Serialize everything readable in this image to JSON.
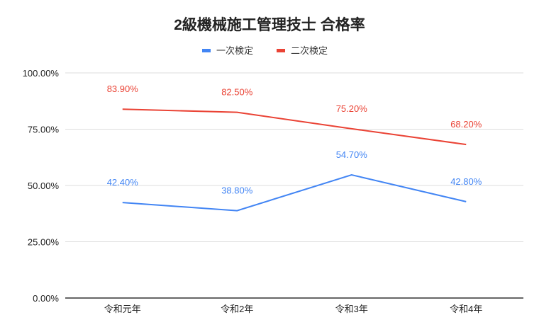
{
  "chart_data": {
    "type": "line",
    "title": "2級機械施工管理技士 合格率",
    "xlabel": "",
    "ylabel": "",
    "categories": [
      "令和元年",
      "令和2年",
      "令和3年",
      "令和4年"
    ],
    "series": [
      {
        "name": "一次検定",
        "color": "#4285f4",
        "values": [
          42.4,
          38.8,
          54.7,
          42.8
        ],
        "labels": [
          "42.40%",
          "38.80%",
          "54.70%",
          "42.80%"
        ]
      },
      {
        "name": "二次検定",
        "color": "#ea4335",
        "values": [
          83.9,
          82.5,
          75.2,
          68.2
        ],
        "labels": [
          "83.90%",
          "82.50%",
          "75.20%",
          "68.20%"
        ]
      }
    ],
    "ylim": [
      0,
      100
    ],
    "yticks": [
      0,
      25,
      50,
      75,
      100
    ],
    "ytick_labels": [
      "0.00%",
      "25.00%",
      "50.00%",
      "75.00%",
      "100.00%"
    ],
    "grid": true,
    "legend_position": "top-center"
  }
}
